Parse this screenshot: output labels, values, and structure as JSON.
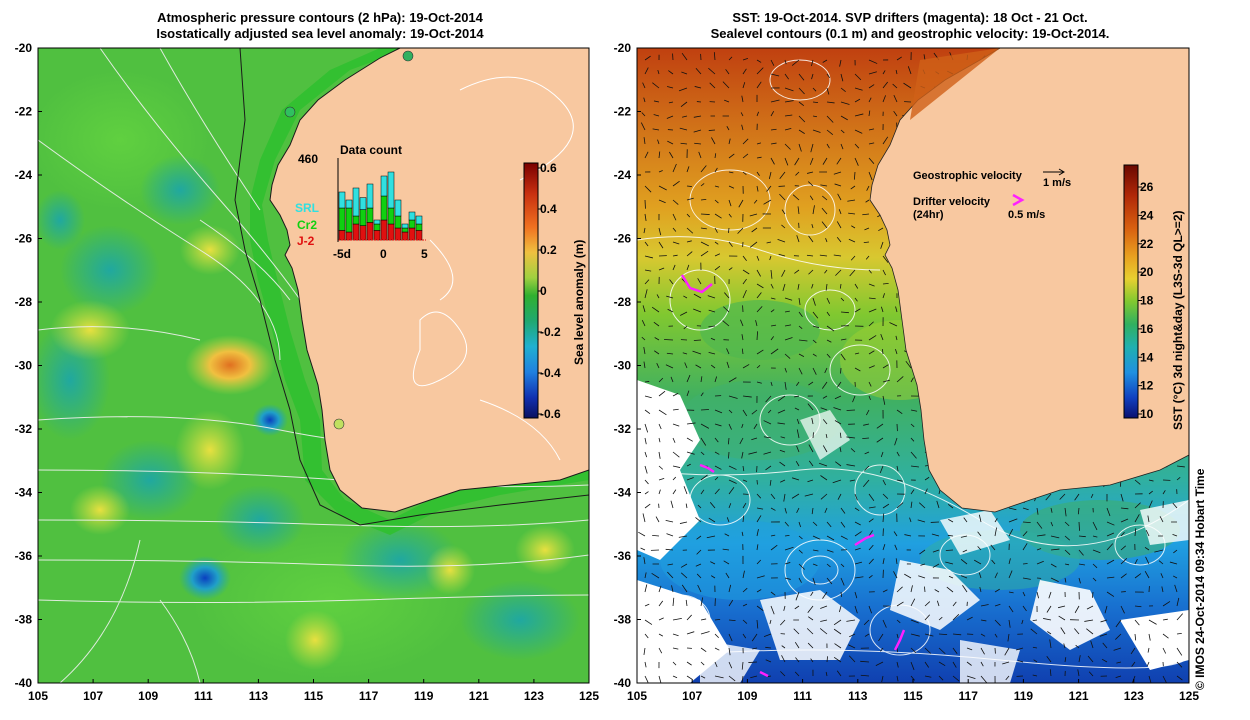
{
  "left_panel": {
    "title_line1": "Atmospheric pressure contours (2 hPa): 19-Oct-2014",
    "title_line2": "Isostatically adjusted sea level anomaly: 19-Oct-2014",
    "colorbar": {
      "label": "Sea level anomaly (m)",
      "ticks": [
        "0.6",
        "0.4",
        "0.2",
        "0",
        "-0.2",
        "-0.4",
        "-0.6"
      ],
      "colors": [
        "#7a0000",
        "#c83010",
        "#f07020",
        "#f0b040",
        "#c8d040",
        "#60c030",
        "#20a050",
        "#20a8a8",
        "#20a0e0",
        "#1060c0",
        "#0a1a80"
      ]
    },
    "inset": {
      "title": "Data count",
      "max_label": "460",
      "x_ticks": [
        "-5d",
        "0",
        "5"
      ],
      "legend": [
        {
          "name": "SRL",
          "color": "#30e0e0"
        },
        {
          "name": "Cr2",
          "color": "#10d010"
        },
        {
          "name": "J-2",
          "color": "#e01010"
        }
      ],
      "bars": [
        {
          "j2": 0.12,
          "cr2": 0.28,
          "srl": 0.2
        },
        {
          "j2": 0.1,
          "cr2": 0.3,
          "srl": 0.1
        },
        {
          "j2": 0.2,
          "cr2": 0.1,
          "srl": 0.35
        },
        {
          "j2": 0.18,
          "cr2": 0.2,
          "srl": 0.15
        },
        {
          "j2": 0.22,
          "cr2": 0.18,
          "srl": 0.3
        },
        {
          "j2": 0.12,
          "cr2": 0.08,
          "srl": 0.05
        },
        {
          "j2": 0.25,
          "cr2": 0.3,
          "srl": 0.25
        },
        {
          "j2": 0.2,
          "cr2": 0.2,
          "srl": 0.45
        },
        {
          "j2": 0.15,
          "cr2": 0.15,
          "srl": 0.2
        },
        {
          "j2": 0.1,
          "cr2": 0.05,
          "srl": 0.05
        },
        {
          "j2": 0.15,
          "cr2": 0.1,
          "srl": 0.1
        },
        {
          "j2": 0.12,
          "cr2": 0.08,
          "srl": 0.1
        }
      ]
    }
  },
  "right_panel": {
    "title_line1": "SST: 19-Oct-2014. SVP drifters (magenta): 18 Oct - 21 Oct.",
    "title_line2": "Sealevel contours (0.1 m) and geostrophic velocity: 19-Oct-2014.",
    "colorbar": {
      "label": "SST (°C) 3d night&day (L3S-3d QL>=2)",
      "ticks": [
        "26",
        "24",
        "22",
        "20",
        "18",
        "16",
        "14",
        "12",
        "10"
      ],
      "colors": [
        "#7a1000",
        "#b03010",
        "#d06010",
        "#e09020",
        "#e0c030",
        "#c0d030",
        "#70c030",
        "#30b070",
        "#20b0c0",
        "#2090e0",
        "#1050c0",
        "#0a1a90"
      ]
    },
    "legend": {
      "geostrophic_label": "Geostrophic velocity",
      "geostrophic_scale": "1 m/s",
      "drifter_label": "Drifter velocity",
      "drifter_label2": "(24hr)",
      "drifter_scale": "0.5 m/s"
    }
  },
  "x_axis_ticks": [
    "105",
    "107",
    "109",
    "111",
    "113",
    "115",
    "117",
    "119",
    "121",
    "123",
    "125"
  ],
  "y_axis_ticks": [
    "-20",
    "-22",
    "-24",
    "-26",
    "-28",
    "-30",
    "-32",
    "-34",
    "-36",
    "-38",
    "-40"
  ],
  "credit": "© IMOS 24-Oct-2014 09:34 Hobart Time",
  "colors": {
    "land": "#f8c8a0",
    "ocean_green": "#40c040",
    "drifter": "#ff20ff"
  }
}
